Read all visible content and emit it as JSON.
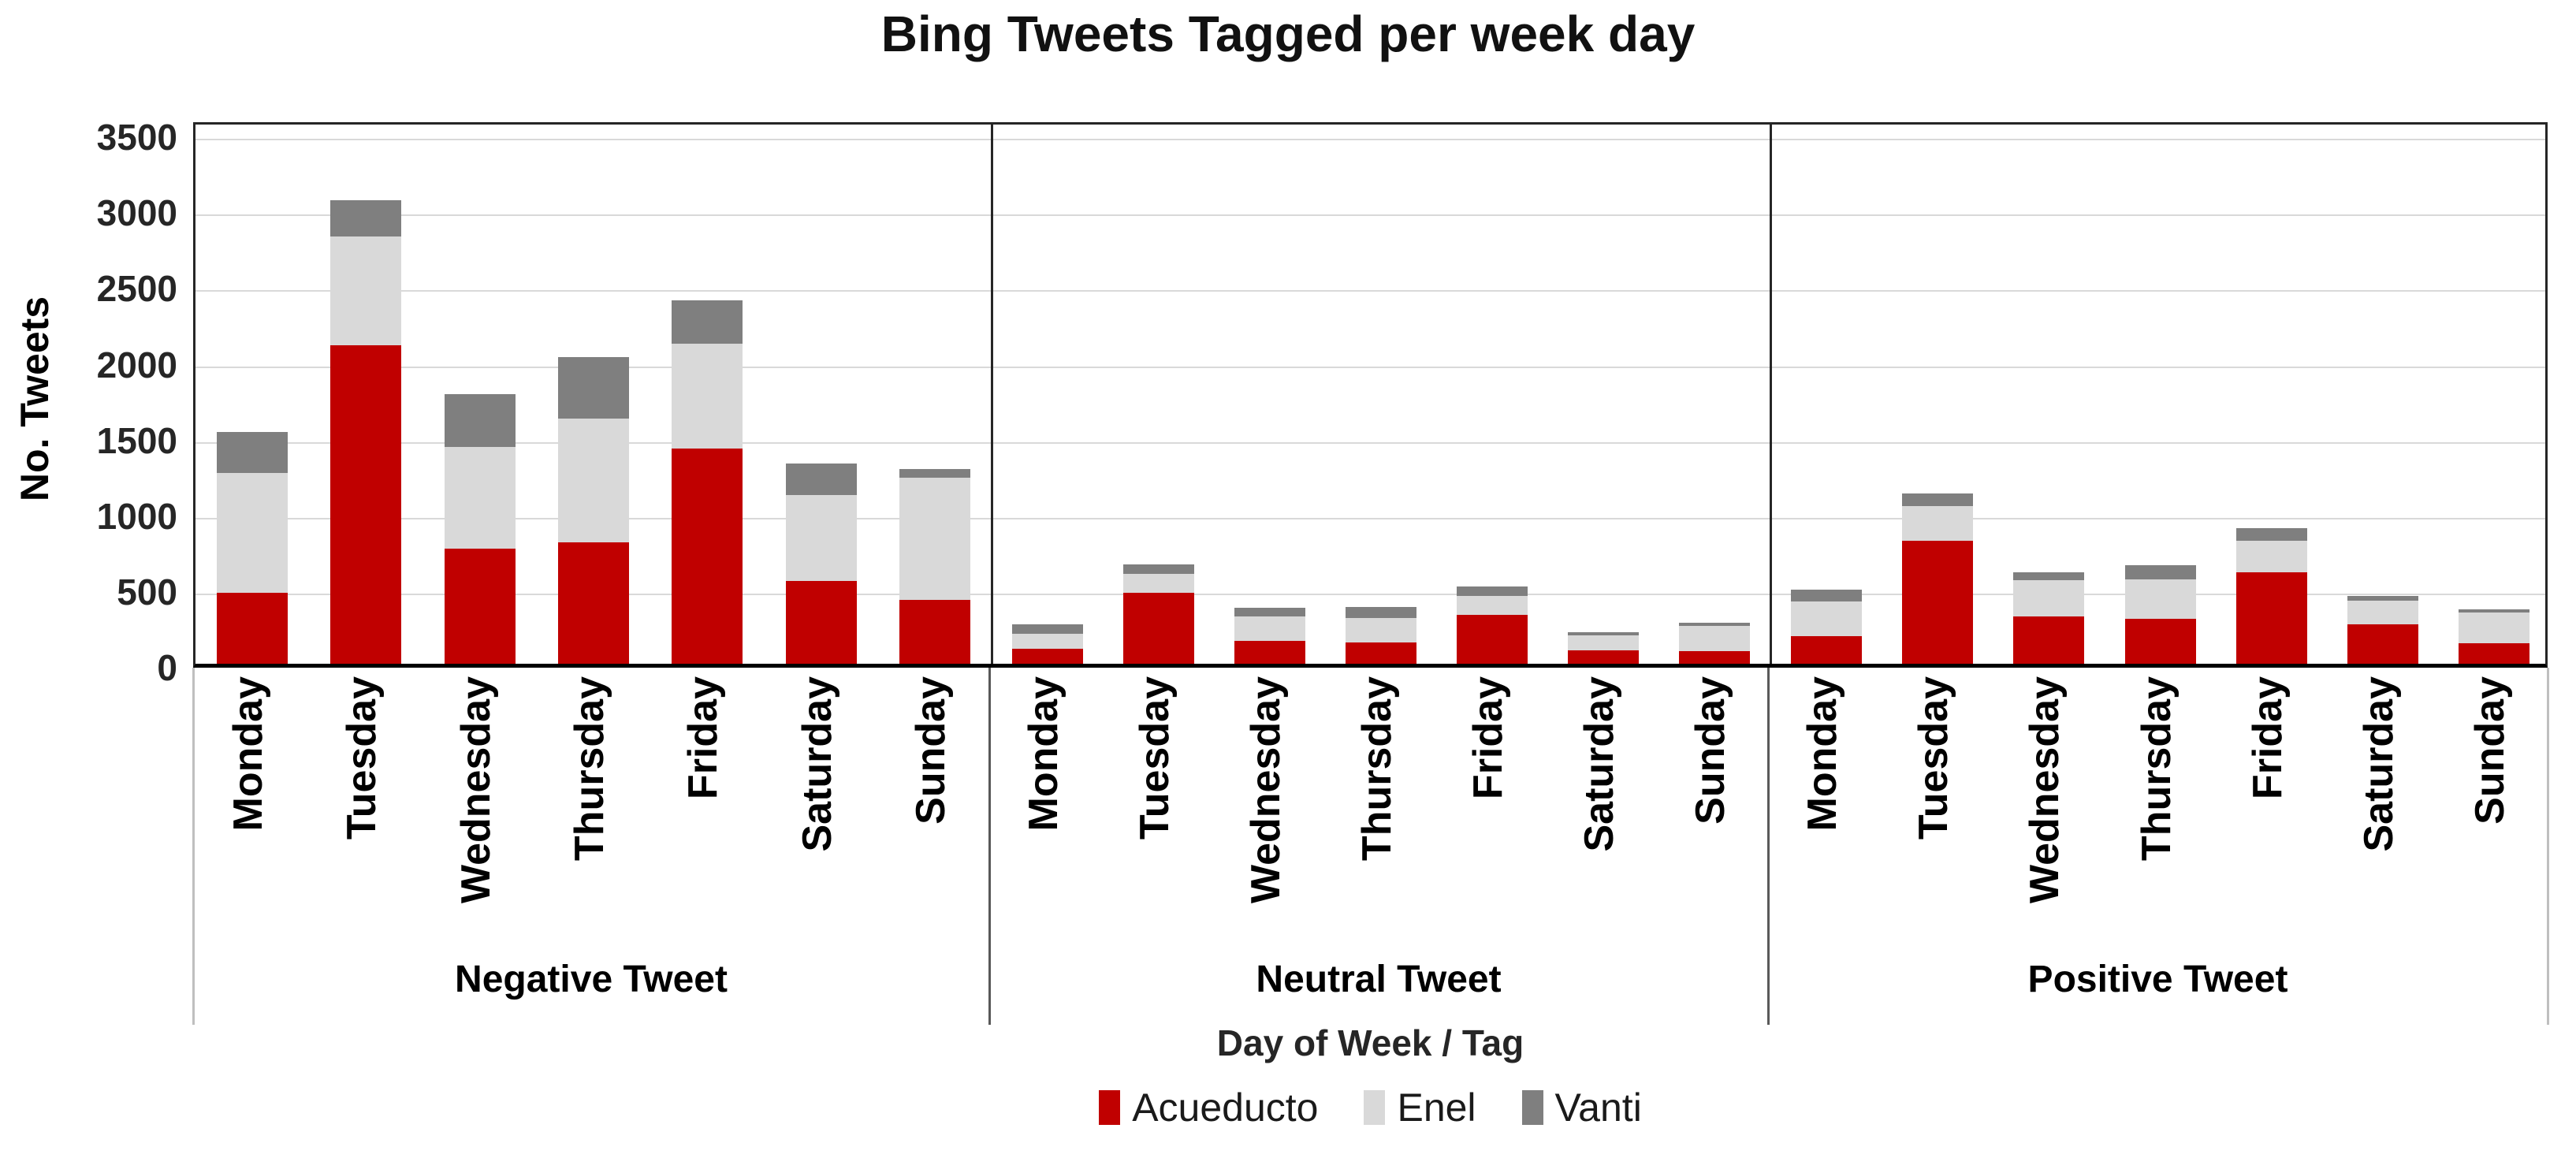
{
  "chart_data": {
    "type": "bar",
    "stacked": true,
    "title": "Bing Tweets Tagged per week day",
    "xlabel": "Day of Week / Tag",
    "ylabel": "No. Tweets",
    "ylim": [
      0,
      3500
    ],
    "yticks": [
      0,
      500,
      1000,
      1500,
      2000,
      2500,
      3000,
      3500
    ],
    "grid": true,
    "legend_position": "bottom",
    "categories": [
      "Monday",
      "Tuesday",
      "Wednesday",
      "Thursday",
      "Friday",
      "Saturday",
      "Sunday"
    ],
    "legend": [
      {
        "name": "Acueducto",
        "color": "#C00000"
      },
      {
        "name": "Enel",
        "color": "#D9D9D9"
      },
      {
        "name": "Vanti",
        "color": "#7F7F7F"
      }
    ],
    "panels": [
      {
        "label": "Negative Tweet",
        "series": [
          {
            "name": "Acueducto",
            "values": [
              470,
              2100,
              760,
              800,
              1420,
              545,
              420
            ]
          },
          {
            "name": "Enel",
            "values": [
              790,
              720,
              670,
              820,
              690,
              570,
              810
            ]
          },
          {
            "name": "Vanti",
            "values": [
              270,
              240,
              350,
              405,
              290,
              205,
              55
            ]
          }
        ]
      },
      {
        "label": "Neutral Tweet",
        "series": [
          {
            "name": "Acueducto",
            "values": [
              100,
              470,
              150,
              140,
              325,
              90,
              85
            ]
          },
          {
            "name": "Enel",
            "values": [
              100,
              125,
              160,
              160,
              125,
              95,
              165
            ]
          },
          {
            "name": "Vanti",
            "values": [
              60,
              60,
              60,
              75,
              60,
              25,
              20
            ]
          }
        ]
      },
      {
        "label": "Positive Tweet",
        "series": [
          {
            "name": "Acueducto",
            "values": [
              180,
              810,
              315,
              295,
              605,
              260,
              135
            ]
          },
          {
            "name": "Enel",
            "values": [
              230,
              230,
              235,
              260,
              205,
              155,
              205
            ]
          },
          {
            "name": "Vanti",
            "values": [
              80,
              85,
              55,
              95,
              85,
              35,
              20
            ]
          }
        ]
      }
    ]
  }
}
